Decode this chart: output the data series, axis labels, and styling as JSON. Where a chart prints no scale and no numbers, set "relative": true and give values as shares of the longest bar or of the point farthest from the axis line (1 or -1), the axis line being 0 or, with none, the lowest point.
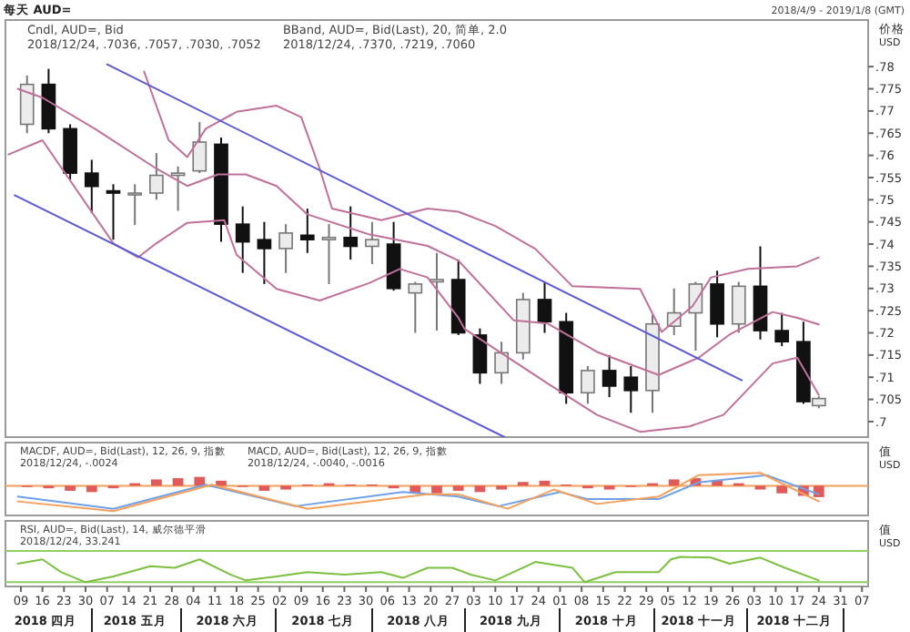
{
  "chart_data": [
    {
      "type": "candlestick",
      "title": "每天 AUD=",
      "subtitle": "2018/4/9 - 2019/1/8 (GMT)",
      "ylabel": "价格 USD",
      "annotations": [
        "Cndl, AUD=, Bid",
        "2018/12/24, .7036, .7057, .7030, .7052",
        "BBand, AUD=, Bid(Last), 20, 简单, 2.0",
        "2018/12/24, .7370, .7219, .7060"
      ],
      "x": [
        "2018-04-11",
        "2018-04-18",
        "2018-04-25",
        "2018-05-02",
        "2018-05-09",
        "2018-05-16",
        "2018-05-23",
        "2018-05-30",
        "2018-06-06",
        "2018-06-13",
        "2018-06-20",
        "2018-06-27",
        "2018-07-04",
        "2018-07-11",
        "2018-07-18",
        "2018-07-25",
        "2018-08-01",
        "2018-08-08",
        "2018-08-15",
        "2018-08-22",
        "2018-08-29",
        "2018-09-05",
        "2018-09-12",
        "2018-09-19",
        "2018-09-26",
        "2018-10-03",
        "2018-10-10",
        "2018-10-17",
        "2018-10-24",
        "2018-10-31",
        "2018-11-07",
        "2018-11-14",
        "2018-11-21",
        "2018-11-28",
        "2018-12-05",
        "2018-12-12",
        "2018-12-19",
        "2018-12-24"
      ],
      "ohlc": [
        [
          0.767,
          0.778,
          0.765,
          0.776
        ],
        [
          0.776,
          0.7795,
          0.765,
          0.766
        ],
        [
          0.766,
          0.767,
          0.7545,
          0.756
        ],
        [
          0.756,
          0.759,
          0.747,
          0.753
        ],
        [
          0.752,
          0.7535,
          0.741,
          0.7515
        ],
        [
          0.7515,
          0.7535,
          0.7443,
          0.7515
        ],
        [
          0.7515,
          0.7605,
          0.75,
          0.7555
        ],
        [
          0.7555,
          0.7575,
          0.7475,
          0.756
        ],
        [
          0.7565,
          0.7675,
          0.756,
          0.763
        ],
        [
          0.7625,
          0.764,
          0.7405,
          0.7445
        ],
        [
          0.7445,
          0.7485,
          0.7335,
          0.7405
        ],
        [
          0.741,
          0.745,
          0.731,
          0.739
        ],
        [
          0.739,
          0.7445,
          0.7335,
          0.7425
        ],
        [
          0.742,
          0.748,
          0.738,
          0.741
        ],
        [
          0.741,
          0.7445,
          0.731,
          0.7415
        ],
        [
          0.7415,
          0.7485,
          0.7365,
          0.7395
        ],
        [
          0.7395,
          0.745,
          0.7355,
          0.741
        ],
        [
          0.74,
          0.745,
          0.7295,
          0.73
        ],
        [
          0.729,
          0.7315,
          0.72,
          0.731
        ],
        [
          0.7315,
          0.738,
          0.7205,
          0.732
        ],
        [
          0.732,
          0.7365,
          0.7195,
          0.72
        ],
        [
          0.7195,
          0.721,
          0.7085,
          0.711
        ],
        [
          0.711,
          0.718,
          0.7085,
          0.7155
        ],
        [
          0.7155,
          0.729,
          0.714,
          0.7275
        ],
        [
          0.7275,
          0.7315,
          0.72,
          0.7225
        ],
        [
          0.7225,
          0.7245,
          0.704,
          0.7065
        ],
        [
          0.7065,
          0.7125,
          0.704,
          0.7115
        ],
        [
          0.7115,
          0.715,
          0.7055,
          0.708
        ],
        [
          0.71,
          0.7125,
          0.702,
          0.707
        ],
        [
          0.707,
          0.724,
          0.702,
          0.722
        ],
        [
          0.7215,
          0.73,
          0.7195,
          0.7245
        ],
        [
          0.7245,
          0.7315,
          0.716,
          0.731
        ],
        [
          0.731,
          0.734,
          0.719,
          0.722
        ],
        [
          0.722,
          0.7315,
          0.72,
          0.7305
        ],
        [
          0.7305,
          0.7395,
          0.7185,
          0.7205
        ],
        [
          0.7205,
          0.7245,
          0.717,
          0.718
        ],
        [
          0.718,
          0.7225,
          0.704,
          0.7045
        ],
        [
          0.7036,
          0.7057,
          0.703,
          0.7052
        ]
      ],
      "series": [
        {
          "type": "line",
          "color": "#c0709a",
          "x": [
            "2018-05-19",
            "2018-05-21",
            "2018-05-27",
            "2018-06-02",
            "2018-06-08",
            "2018-06-18",
            "2018-07-01",
            "2018-07-09",
            "2018-07-15",
            "2018-07-19",
            "2018-08-04",
            "2018-08-19",
            "2018-08-29",
            "2018-09-10",
            "2018-09-23",
            "2018-10-05",
            "2018-10-27",
            "2018-11-03",
            "2018-11-13",
            "2018-11-19",
            "2018-12-01",
            "2018-12-17",
            "2018-12-24"
          ],
          "values": [
            0.7789,
            0.775,
            0.7634,
            0.7596,
            0.766,
            0.7698,
            0.7712,
            0.7686,
            0.757,
            0.748,
            0.7454,
            0.748,
            0.7473,
            0.7441,
            0.7389,
            0.7305,
            0.7299,
            0.7202,
            0.726,
            0.7325,
            0.7344,
            0.735,
            0.737
          ]
        },
        {
          "type": "line",
          "color": "#c0709a",
          "x": [
            "2018-04-08",
            "2018-04-16",
            "2018-05-03",
            "2018-05-23",
            "2018-06-02",
            "2018-06-12",
            "2018-06-21",
            "2018-07-01",
            "2018-07-11",
            "2018-07-31",
            "2018-08-19",
            "2018-08-29",
            "2018-09-16",
            "2018-09-27",
            "2018-10-13",
            "2018-11-02",
            "2018-11-15",
            "2018-11-25",
            "2018-12-09",
            "2018-12-17",
            "2018-12-24"
          ],
          "values": [
            0.775,
            0.773,
            0.766,
            0.757,
            0.7531,
            0.7557,
            0.7557,
            0.7531,
            0.7467,
            0.7422,
            0.7396,
            0.7363,
            0.7228,
            0.7221,
            0.7157,
            0.7105,
            0.7144,
            0.7196,
            0.7247,
            0.7234,
            0.7219
          ]
        },
        {
          "type": "line",
          "color": "#c0709a",
          "x": [
            "2018-04-05",
            "2018-04-16",
            "2018-05-09",
            "2018-05-17",
            "2018-05-23",
            "2018-06-02",
            "2018-06-14",
            "2018-06-18",
            "2018-07-01",
            "2018-07-15",
            "2018-07-31",
            "2018-08-10",
            "2018-08-19",
            "2018-08-29",
            "2018-08-31",
            "2018-09-27",
            "2018-10-13",
            "2018-10-27",
            "2018-11-12",
            "2018-11-23",
            "2018-12-09",
            "2018-12-17",
            "2018-12-24"
          ],
          "values": [
            0.7602,
            0.7634,
            0.7402,
            0.737,
            0.7402,
            0.7448,
            0.7454,
            0.7376,
            0.7299,
            0.7273,
            0.7312,
            0.7344,
            0.7325,
            0.7234,
            0.7209,
            0.7086,
            0.7015,
            0.6977,
            0.6989,
            0.7015,
            0.7131,
            0.7144,
            0.706
          ]
        },
        {
          "type": "line",
          "color": "#5a5ad8",
          "x": [
            "2018-05-07",
            "2018-11-29"
          ],
          "values": [
            0.7805,
            0.7093
          ]
        },
        {
          "type": "line",
          "color": "#5a5ad8",
          "x": [
            "2018-04-07",
            "2018-09-13"
          ],
          "values": [
            0.751,
            0.6965
          ]
        }
      ],
      "xlim": [
        "2018-04-04",
        "2019-01-09"
      ],
      "ylim": [
        0.6965,
        0.7905
      ],
      "yticks": [
        {
          "value": 0.7,
          "label": ".7"
        },
        {
          "value": 0.705,
          "label": ".705"
        },
        {
          "value": 0.71,
          "label": ".71"
        },
        {
          "value": 0.715,
          "label": ".715"
        },
        {
          "value": 0.72,
          "label": ".72"
        },
        {
          "value": 0.725,
          "label": ".725"
        },
        {
          "value": 0.73,
          "label": ".73"
        },
        {
          "value": 0.735,
          "label": ".735"
        },
        {
          "value": 0.74,
          "label": ".74"
        },
        {
          "value": 0.745,
          "label": ".745"
        },
        {
          "value": 0.75,
          "label": ".75"
        },
        {
          "value": 0.755,
          "label": ".755"
        },
        {
          "value": 0.76,
          "label": ".76"
        },
        {
          "value": 0.765,
          "label": ".765"
        },
        {
          "value": 0.77,
          "label": ".77"
        },
        {
          "value": 0.775,
          "label": ".775"
        },
        {
          "value": 0.78,
          "label": ".78"
        }
      ],
      "tick_labels": "y"
    },
    {
      "type": "bar",
      "relative": true,
      "ylabel": "值 USD",
      "annotations": [
        "MACDF, AUD=, Bid(Last), 12, 26, 9, 指數",
        "2018/12/24, -.0024",
        "MACD, AUD=, Bid(Last), 12, 26, 9, 指數",
        "2018/12/24, -.0040, -.0016"
      ],
      "series": [
        {
          "type": "bar",
          "color": "#e05a5a",
          "x": [
            "2018-04-11",
            "2018-04-18",
            "2018-04-25",
            "2018-05-02",
            "2018-05-09",
            "2018-05-16",
            "2018-05-23",
            "2018-05-30",
            "2018-06-06",
            "2018-06-13",
            "2018-06-20",
            "2018-06-27",
            "2018-07-04",
            "2018-07-11",
            "2018-07-18",
            "2018-07-25",
            "2018-08-01",
            "2018-08-08",
            "2018-08-15",
            "2018-08-22",
            "2018-08-29",
            "2018-09-05",
            "2018-09-12",
            "2018-09-19",
            "2018-09-26",
            "2018-10-03",
            "2018-10-10",
            "2018-10-17",
            "2018-10-24",
            "2018-10-31",
            "2018-11-07",
            "2018-11-14",
            "2018-11-21",
            "2018-11-28",
            "2018-12-05",
            "2018-12-12",
            "2018-12-19",
            "2018-12-24"
          ],
          "values": [
            -0.05,
            -0.1,
            -0.2,
            -0.25,
            -0.1,
            0.1,
            0.25,
            0.3,
            0.35,
            0.2,
            -0.05,
            -0.2,
            -0.15,
            0.05,
            0.1,
            0.05,
            0.05,
            -0.1,
            -0.3,
            -0.3,
            -0.2,
            -0.25,
            -0.15,
            0.15,
            0.2,
            0.05,
            -0.1,
            -0.15,
            -0.05,
            0.1,
            0.25,
            0.3,
            0.2,
            0.1,
            -0.15,
            -0.3,
            -0.4,
            -0.45
          ]
        },
        {
          "type": "line",
          "color": "#6fa0e8",
          "x": [
            "2018-04-08",
            "2018-05-09",
            "2018-06-08",
            "2018-07-07",
            "2018-08-11",
            "2018-08-29",
            "2018-09-11",
            "2018-10-01",
            "2018-10-10",
            "2018-11-02",
            "2018-11-15",
            "2018-12-07",
            "2018-12-24"
          ],
          "values": [
            -0.43,
            -0.91,
            0.04,
            -0.81,
            -0.25,
            -0.43,
            -0.81,
            -0.25,
            -0.53,
            -0.53,
            0.13,
            0.42,
            -0.34
          ]
        },
        {
          "type": "line",
          "color": "#f5a05a",
          "x": [
            "2018-04-08",
            "2018-05-09",
            "2018-06-10",
            "2018-07-11",
            "2018-08-19",
            "2018-08-29",
            "2018-09-14",
            "2018-09-29",
            "2018-10-13",
            "2018-11-02",
            "2018-11-15",
            "2018-12-05",
            "2018-12-24"
          ],
          "values": [
            -0.62,
            -1,
            0.04,
            -0.91,
            -0.34,
            -0.34,
            -0.91,
            -0.15,
            -0.72,
            -0.43,
            0.42,
            0.51,
            -0.62
          ]
        }
      ],
      "ref_lines": [
        {
          "axis": "y",
          "value": 0,
          "color": "#f5a05a"
        }
      ],
      "xlim": [
        "2018-04-04",
        "2019-01-09"
      ],
      "tick_labels": false
    },
    {
      "type": "line",
      "relative": true,
      "ylabel": "值 USD",
      "annotations": [
        "RSI, AUD=, Bid(Last), 14, 威尔德平滑",
        "2018/12/24, 33.241"
      ],
      "series": [
        {
          "color": "#7cc040",
          "x": [
            "2018-04-08",
            "2018-04-16",
            "2018-04-22",
            "2018-04-30",
            "2018-05-09",
            "2018-05-21",
            "2018-05-29",
            "2018-06-06",
            "2018-06-16",
            "2018-06-21",
            "2018-07-01",
            "2018-07-11",
            "2018-07-23",
            "2018-08-04",
            "2018-08-11",
            "2018-08-19",
            "2018-08-27",
            "2018-09-02",
            "2018-09-10",
            "2018-09-23",
            "2018-10-05",
            "2018-10-09",
            "2018-10-19",
            "2018-11-02",
            "2018-11-06",
            "2018-11-09",
            "2018-11-19",
            "2018-11-25",
            "2018-12-05",
            "2018-12-13",
            "2018-12-24"
          ],
          "values": [
            0.73,
            0.9,
            0.4,
            0,
            0.23,
            0.63,
            0.57,
            0.9,
            0.3,
            0.07,
            0.23,
            0.4,
            0.3,
            0.4,
            0.17,
            0.57,
            0.57,
            0.3,
            0.07,
            0.8,
            0.57,
            0,
            0.4,
            0.4,
            0.9,
            1,
            0.97,
            0.73,
            0.97,
            0.57,
            0.07
          ]
        }
      ],
      "ref_lines": [
        {
          "axis": "y",
          "value": 1.23,
          "color": "#8fd060"
        },
        {
          "axis": "y",
          "value": 0,
          "color": "#8fd060"
        }
      ],
      "xlim": [
        "2018-04-04",
        "2019-01-09"
      ],
      "xticks": [
        {
          "value": "2018-04-09",
          "label": "09"
        },
        {
          "value": "2018-04-16",
          "label": "16"
        },
        {
          "value": "2018-04-23",
          "label": "23"
        },
        {
          "value": "2018-04-30",
          "label": "30"
        },
        {
          "value": "2018-05-07",
          "label": "07"
        },
        {
          "value": "2018-05-14",
          "label": "14"
        },
        {
          "value": "2018-05-21",
          "label": "21"
        },
        {
          "value": "2018-05-28",
          "label": "28"
        },
        {
          "value": "2018-06-04",
          "label": "04"
        },
        {
          "value": "2018-06-11",
          "label": "11"
        },
        {
          "value": "2018-06-18",
          "label": "18"
        },
        {
          "value": "2018-06-25",
          "label": "25"
        },
        {
          "value": "2018-07-02",
          "label": "02"
        },
        {
          "value": "2018-07-09",
          "label": "09"
        },
        {
          "value": "2018-07-16",
          "label": "16"
        },
        {
          "value": "2018-07-23",
          "label": "23"
        },
        {
          "value": "2018-07-30",
          "label": "30"
        },
        {
          "value": "2018-08-06",
          "label": "06"
        },
        {
          "value": "2018-08-13",
          "label": "13"
        },
        {
          "value": "2018-08-20",
          "label": "20"
        },
        {
          "value": "2018-08-27",
          "label": "27"
        },
        {
          "value": "2018-09-03",
          "label": "03"
        },
        {
          "value": "2018-09-10",
          "label": "10"
        },
        {
          "value": "2018-09-17",
          "label": "17"
        },
        {
          "value": "2018-09-24",
          "label": "24"
        },
        {
          "value": "2018-10-01",
          "label": "01"
        },
        {
          "value": "2018-10-08",
          "label": "08"
        },
        {
          "value": "2018-10-15",
          "label": "15"
        },
        {
          "value": "2018-10-22",
          "label": "22"
        },
        {
          "value": "2018-10-29",
          "label": "29"
        },
        {
          "value": "2018-11-05",
          "label": "05"
        },
        {
          "value": "2018-11-12",
          "label": "12"
        },
        {
          "value": "2018-11-19",
          "label": "19"
        },
        {
          "value": "2018-11-26",
          "label": "26"
        },
        {
          "value": "2018-12-03",
          "label": "03"
        },
        {
          "value": "2018-12-10",
          "label": "10"
        },
        {
          "value": "2018-12-17",
          "label": "17"
        },
        {
          "value": "2018-12-24",
          "label": "24"
        },
        {
          "value": "2018-12-31",
          "label": "31"
        },
        {
          "value": "2019-01-07",
          "label": "07"
        }
      ],
      "x2lim": [
        "2018-04-04",
        "2019-01-09"
      ],
      "x2ticks": [
        {
          "value": "2018-04-17",
          "label": "2018 四月"
        },
        {
          "value": "2018-05-16",
          "label": "2018 五月"
        },
        {
          "value": "2018-06-15",
          "label": "2018 六月"
        },
        {
          "value": "2018-07-16",
          "label": "2018 七月"
        },
        {
          "value": "2018-08-16",
          "label": "2018 八月"
        },
        {
          "value": "2018-09-15",
          "label": "2018 九月"
        },
        {
          "value": "2018-10-16",
          "label": "2018 十月"
        },
        {
          "value": "2018-11-15",
          "label": "2018 十一月"
        },
        {
          "value": "2018-12-16",
          "label": "2018 十二月"
        }
      ],
      "tick_labels": "x"
    }
  ]
}
